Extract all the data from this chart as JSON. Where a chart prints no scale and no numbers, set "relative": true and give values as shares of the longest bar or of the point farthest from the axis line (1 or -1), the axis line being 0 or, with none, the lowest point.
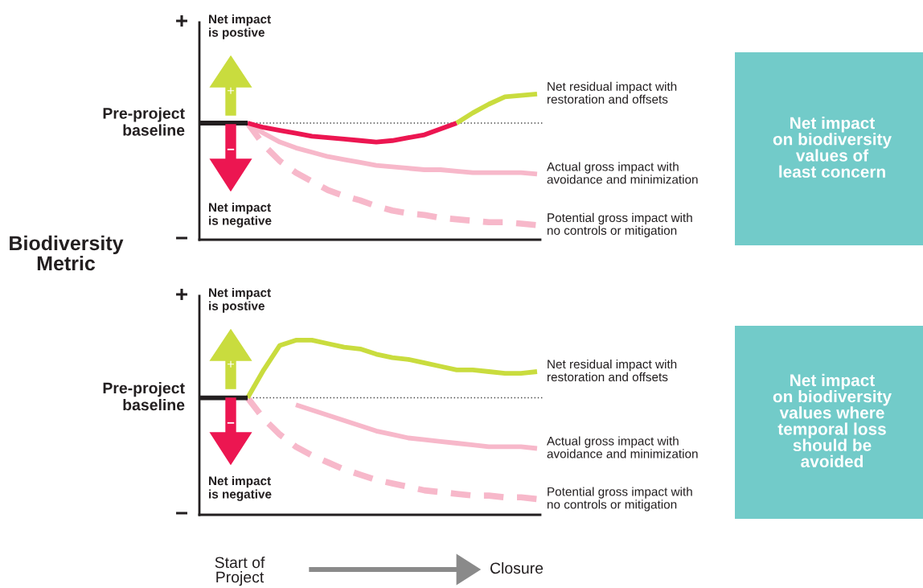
{
  "chart_data": [
    {
      "type": "line",
      "relative": true,
      "ylabel": "Biodiversity Metric",
      "categories": [
        null,
        null,
        null,
        null,
        null,
        null,
        null,
        null,
        null,
        null,
        null,
        null,
        null,
        null,
        null,
        null,
        null,
        null,
        null,
        null,
        null,
        null
      ],
      "series": [
        {
          "color": "#f7b8ca",
          "line_style": "dashed",
          "name": "Potential gross impact with\nno controls or mitigation",
          "values": [
            null,
            null,
            null,
            0.8,
            0.65,
            0.54,
            0.46,
            0.4,
            0.34,
            0.3,
            0.27,
            0.23,
            0.2,
            0.18,
            0.17,
            0.15,
            0.14,
            0.13,
            0.12,
            0.12,
            0.11,
            0.1
          ]
        },
        {
          "color": "#f7b8ca",
          "name": "Actual gross impact with\navoidance and minimization",
          "values": [
            null,
            null,
            null,
            0.8,
            0.73,
            0.67,
            0.63,
            0.6,
            0.57,
            0.55,
            0.53,
            0.51,
            0.5,
            0.49,
            0.48,
            0.48,
            0.47,
            0.46,
            0.46,
            0.46,
            0.46,
            0.45
          ]
        },
        {
          "color": "#ec1651",
          "values": [
            null,
            null,
            null,
            0.8,
            0.77,
            0.75,
            0.73,
            0.71,
            0.7,
            0.69,
            0.68,
            0.67,
            0.68,
            0.7,
            0.72,
            0.76,
            0.8,
            null,
            null,
            null,
            null,
            null
          ]
        },
        {
          "color": "#c9dc3e",
          "name": "Net residual impact with\nrestoration and offsets",
          "values": [
            null,
            null,
            null,
            null,
            null,
            null,
            null,
            null,
            null,
            null,
            null,
            null,
            null,
            null,
            null,
            null,
            0.8,
            0.87,
            0.93,
            0.98,
            0.99,
            1.0
          ]
        },
        {
          "color": "#231f20",
          "values": [
            0.8,
            0.8,
            0.8,
            0.8,
            null,
            null,
            null,
            null,
            null,
            null,
            null,
            null,
            null,
            null,
            null,
            null,
            null,
            null,
            null,
            null,
            null,
            null
          ]
        }
      ],
      "ref_lines": [
        {
          "axis": "y",
          "value": 0.8,
          "label": "Pre-project\nbaseline",
          "line_style": "dotted",
          "color": "#444444"
        }
      ],
      "annotations": [
        "+",
        "−",
        "Net impact\nis postive",
        "Net impact\nis negative",
        "+",
        "−",
        "Net impact\non biodiversity\nvalues of\nleast concern"
      ]
    },
    {
      "type": "line",
      "relative": true,
      "categories": [
        null,
        null,
        null,
        null,
        null,
        null,
        null,
        null,
        null,
        null,
        null,
        null,
        null,
        null,
        null,
        null,
        null,
        null,
        null,
        null,
        null,
        null
      ],
      "series": [
        {
          "color": "#f7b8ca",
          "line_style": "dashed",
          "name": "Potential gross impact with\nno controls or mitigation",
          "values": [
            null,
            null,
            null,
            0.67,
            0.55,
            0.46,
            0.39,
            0.34,
            0.3,
            0.26,
            0.23,
            0.2,
            0.18,
            0.16,
            0.14,
            0.13,
            0.12,
            0.11,
            0.11,
            0.1,
            0.1,
            0.09
          ]
        },
        {
          "color": "#f7b8ca",
          "name": "Actual gross impact with\navoidance and minimization",
          "values": [
            null,
            null,
            null,
            null,
            null,
            null,
            0.63,
            0.6,
            0.57,
            0.54,
            0.51,
            0.48,
            0.46,
            0.44,
            0.43,
            0.42,
            0.41,
            0.4,
            0.39,
            0.39,
            0.39,
            0.38
          ]
        },
        {
          "color": "#c9dc3e",
          "name": "Net residual impact with\nrestoration and offsets",
          "values": [
            null,
            null,
            null,
            0.67,
            0.83,
            0.97,
            1.0,
            1.0,
            0.98,
            0.96,
            0.95,
            0.92,
            0.9,
            0.89,
            0.87,
            0.85,
            0.83,
            0.83,
            0.82,
            0.81,
            0.81,
            0.82
          ]
        },
        {
          "color": "#231f20",
          "values": [
            0.67,
            0.67,
            0.67,
            0.67,
            null,
            null,
            null,
            null,
            null,
            null,
            null,
            null,
            null,
            null,
            null,
            null,
            null,
            null,
            null,
            null,
            null,
            null
          ]
        }
      ],
      "ref_lines": [
        {
          "axis": "y",
          "value": 0.67,
          "label": "Pre-project\nbaseline",
          "line_style": "dotted",
          "color": "#444444"
        }
      ],
      "annotations": [
        "+",
        "−",
        "Net impact\nis postive",
        "Net impact\nis negative",
        "+",
        "−",
        "Net impact\non biodiversity\nvalues where\ntemporal loss\nshould be\navoided",
        "Start of\nProject",
        "Closure"
      ]
    }
  ]
}
